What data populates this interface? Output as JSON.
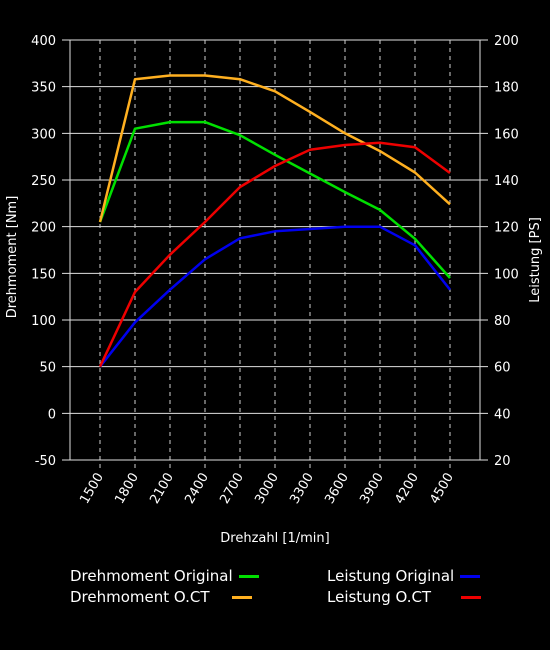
{
  "chart_data": {
    "type": "line",
    "xlabel": "Drehzahl [1/min]",
    "ylabel_left": "Drehmoment [Nm]",
    "ylabel_right": "Leistung [PS]",
    "x": [
      1500,
      1800,
      2100,
      2400,
      2700,
      3000,
      3300,
      3600,
      3900,
      4200,
      4500
    ],
    "x_tick_labels": [
      "1500",
      "1800",
      "2100",
      "2400",
      "2700",
      "3000",
      "3300",
      "3600",
      "3900",
      "4200",
      "4500"
    ],
    "ylim_left": [
      -50,
      400
    ],
    "ylim_right": [
      20,
      200
    ],
    "y_ticks_left": [
      -50,
      0,
      50,
      100,
      150,
      200,
      250,
      300,
      350,
      400
    ],
    "y_ticks_right": [
      20,
      40,
      60,
      80,
      100,
      120,
      140,
      160,
      180,
      200
    ],
    "grid": true,
    "series": [
      {
        "name": "Drehmoment Original",
        "axis": "left",
        "color": "#00e000",
        "values": [
          205,
          305,
          312,
          312,
          298,
          277,
          257,
          237,
          218,
          187,
          145
        ]
      },
      {
        "name": "Drehmoment O.CT",
        "axis": "left",
        "color": "#ffb020",
        "values": [
          205,
          358,
          362,
          362,
          358,
          345,
          323,
          300,
          281,
          258,
          224
        ]
      },
      {
        "name": "Leistung Original",
        "axis": "right",
        "color": "#0000ee",
        "values": [
          60,
          79,
          93,
          106,
          115,
          118,
          119,
          120,
          120,
          112,
          93
        ]
      },
      {
        "name": "Leistung O.CT",
        "axis": "right",
        "color": "#ee0000",
        "values": [
          60,
          92,
          108,
          122,
          137,
          146,
          153,
          155,
          156,
          154,
          143
        ]
      }
    ],
    "legend_position": "bottom"
  }
}
